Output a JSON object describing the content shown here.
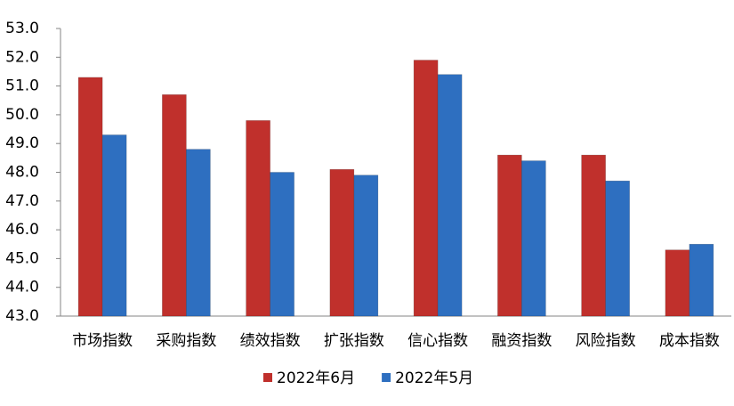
{
  "chart_data": {
    "type": "bar",
    "categories": [
      "市场指数",
      "采购指数",
      "绩效指数",
      "扩张指数",
      "信心指数",
      "融资指数",
      "风险指数",
      "成本指数"
    ],
    "series": [
      {
        "name": "2022年6月",
        "color": "#c0302c",
        "values": [
          51.3,
          50.7,
          49.8,
          48.1,
          51.9,
          48.6,
          48.6,
          45.3
        ]
      },
      {
        "name": "2022年5月",
        "color": "#2e6fc0",
        "values": [
          49.3,
          48.8,
          48.0,
          47.9,
          51.4,
          48.4,
          47.7,
          45.5
        ]
      }
    ],
    "ylim": [
      43,
      53
    ],
    "yticks": [
      {
        "value": 43,
        "label": "43.0"
      },
      {
        "value": 44,
        "label": "44.0"
      },
      {
        "value": 45,
        "label": "45.0"
      },
      {
        "value": 46,
        "label": "46.0"
      },
      {
        "value": 47,
        "label": "47.0"
      },
      {
        "value": 48,
        "label": "48.0"
      },
      {
        "value": 49,
        "label": "49.0"
      },
      {
        "value": 50,
        "label": "50.0"
      },
      {
        "value": 51,
        "label": "51.0"
      },
      {
        "value": 52,
        "label": "52.0"
      },
      {
        "value": 53,
        "label": "53.0"
      }
    ],
    "grid": false,
    "legend": "bottom"
  }
}
